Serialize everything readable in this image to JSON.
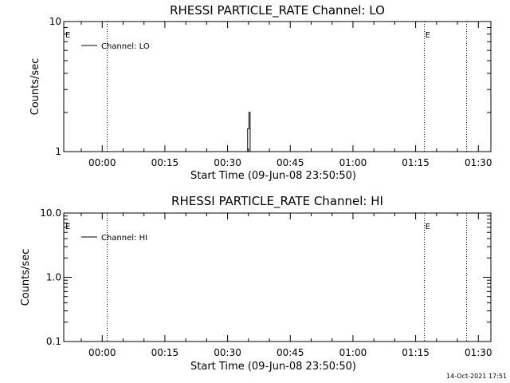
{
  "chart_data": [
    {
      "type": "line",
      "title": "RHESSI PARTICLE_RATE Channel: LO",
      "xlabel": "Start Time (09-Jun-08 23:50:50)",
      "ylabel": "Counts/sec",
      "yscale": "log",
      "ylim": [
        1,
        10
      ],
      "xlim_minutes": [
        -9.2,
        93.0
      ],
      "x_ticks": [
        {
          "minutes": 0,
          "label": "00:00"
        },
        {
          "minutes": 15,
          "label": "00:15"
        },
        {
          "minutes": 30,
          "label": "00:30"
        },
        {
          "minutes": 45,
          "label": "00:45"
        },
        {
          "minutes": 60,
          "label": "01:00"
        },
        {
          "minutes": 75,
          "label": "01:15"
        },
        {
          "minutes": 90,
          "label": "01:30"
        }
      ],
      "y_ticks": [
        {
          "value": 1,
          "label": "1"
        },
        {
          "value": 10,
          "label": "10"
        }
      ],
      "legend": {
        "entry": "Channel: LO",
        "placement": "top-left"
      },
      "series": [
        {
          "name": "Channel: LO",
          "x_minutes": [
            34.8,
            34.8,
            35.1,
            35.1,
            35.4,
            35.4
          ],
          "y": [
            1,
            1.5,
            1.5,
            2,
            2,
            1
          ]
        }
      ],
      "vlines": [
        {
          "minutes": 1.2,
          "label": ""
        },
        {
          "minutes": 77.1,
          "label": "E"
        },
        {
          "minutes": 87.2,
          "label": ""
        }
      ],
      "left_marker": "E",
      "grid": false
    },
    {
      "type": "line",
      "title": "RHESSI PARTICLE_RATE Channel: HI",
      "xlabel": "Start Time (09-Jun-08 23:50:50)",
      "ylabel": "Counts/sec",
      "yscale": "log",
      "ylim": [
        0.1,
        10
      ],
      "xlim_minutes": [
        -9.2,
        93.0
      ],
      "x_ticks": [
        {
          "minutes": 0,
          "label": "00:00"
        },
        {
          "minutes": 15,
          "label": "00:15"
        },
        {
          "minutes": 30,
          "label": "00:30"
        },
        {
          "minutes": 45,
          "label": "00:45"
        },
        {
          "minutes": 60,
          "label": "01:00"
        },
        {
          "minutes": 75,
          "label": "01:15"
        },
        {
          "minutes": 90,
          "label": "01:30"
        }
      ],
      "y_ticks": [
        {
          "value": 0.1,
          "label": "0.1"
        },
        {
          "value": 1,
          "label": "1.0"
        },
        {
          "value": 10,
          "label": "10.0"
        }
      ],
      "legend": {
        "entry": "Channel: HI",
        "placement": "top-left"
      },
      "series": [
        {
          "name": "Channel: HI",
          "x_minutes": [],
          "y": []
        }
      ],
      "vlines": [
        {
          "minutes": 1.2,
          "label": ""
        },
        {
          "minutes": 77.1,
          "label": "E"
        },
        {
          "minutes": 87.2,
          "label": ""
        }
      ],
      "left_marker": "E",
      "grid": false
    }
  ],
  "footer": {
    "timestamp": "14-Oct-2021 17:51"
  }
}
